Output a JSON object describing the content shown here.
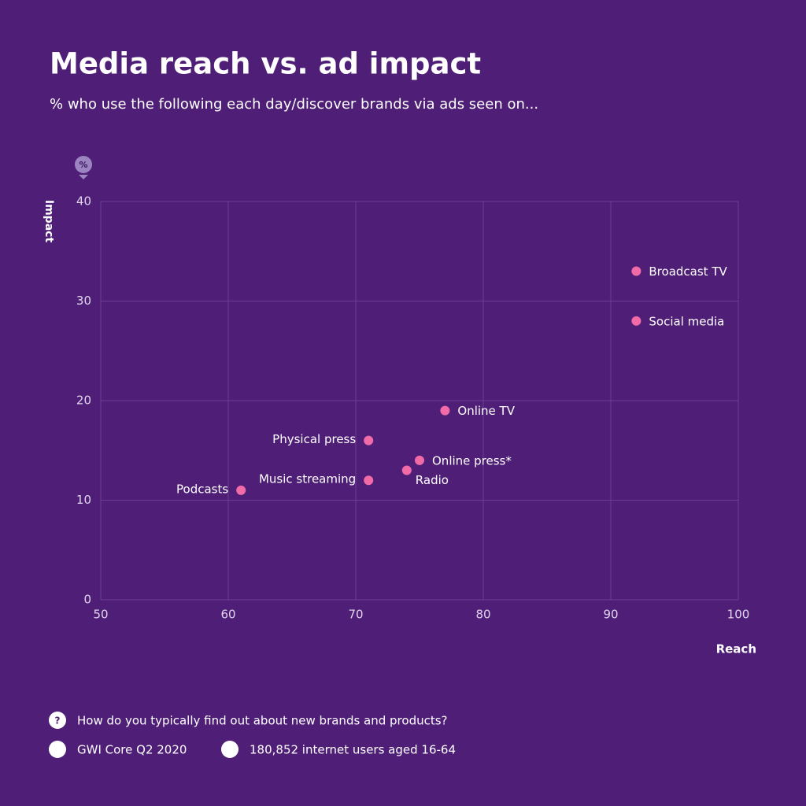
{
  "chart_data": {
    "type": "scatter",
    "title": "Media reach vs. ad impact",
    "subtitle": "% who use the following each day/discover brands via ads seen on...",
    "unit_badge": "%",
    "y_label": "Impact",
    "x_label": "Reach",
    "labels": [
      "Broadcast TV",
      "Social media",
      "Online TV",
      "Physical press",
      "Online press*",
      "Radio",
      "Music streaming",
      "Podcasts"
    ],
    "x": [
      92,
      92,
      77,
      71,
      75,
      74,
      71,
      61
    ],
    "values": [
      33,
      28,
      19,
      16,
      14,
      13,
      12,
      11
    ],
    "color": "#f06ba8",
    "xlim": [
      50,
      100
    ],
    "xticks": [
      50,
      60,
      70,
      80,
      90,
      100
    ],
    "ylim": [
      0,
      40
    ],
    "yticks": [
      0,
      10,
      20,
      30,
      40
    ],
    "grid": true
  },
  "footer": {
    "question": "How do you typically find out about new brands and products?",
    "source": "GWI Core Q2 2020",
    "sample": "180,852 internet users aged 16-64"
  }
}
